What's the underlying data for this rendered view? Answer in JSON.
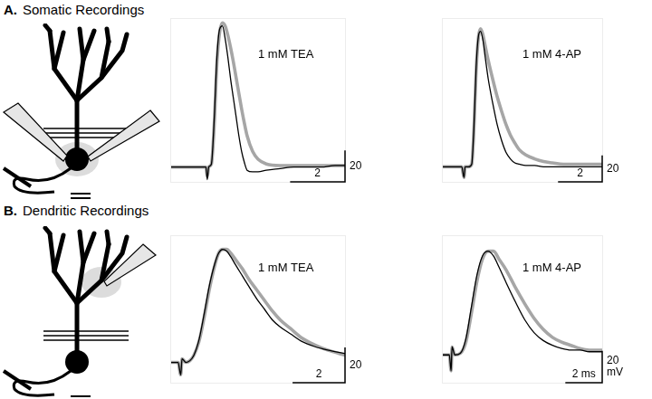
{
  "figure": {
    "panels": [
      {
        "label": "A.",
        "title": "Somatic Recordings"
      },
      {
        "label": "B.",
        "title": "Dendritic Recordings"
      }
    ]
  },
  "chart_data": [
    {
      "type": "line",
      "annotation": "1 mM TEA",
      "x": [
        0,
        0.5,
        1.0,
        1.3,
        1.35,
        1.4,
        1.5,
        1.6,
        1.7,
        1.8,
        1.9,
        2.0,
        2.1,
        2.2,
        2.3,
        2.4,
        2.5,
        2.6,
        2.7,
        2.8,
        3.0,
        3.2,
        3.5,
        4.0,
        4.5,
        5.0,
        5.5,
        6.0,
        6.4
      ],
      "series": [
        {
          "color": "#000000",
          "values": [
            0,
            0,
            0,
            0,
            -8,
            0,
            2,
            30,
            70,
            88,
            90,
            82,
            70,
            56,
            44,
            32,
            20,
            10,
            3,
            -2,
            -3,
            -3,
            -2,
            -1,
            0,
            0,
            0,
            1,
            1
          ]
        },
        {
          "color": "#a6a6a6",
          "values": [
            0,
            0,
            0,
            0,
            -6,
            0,
            2,
            26,
            66,
            86,
            92,
            90,
            84,
            76,
            67,
            57,
            47,
            37,
            28,
            20,
            10,
            5,
            2,
            1,
            1,
            1,
            1,
            1,
            1
          ]
        }
      ],
      "xlim": [
        0,
        6.4
      ],
      "ylim": [
        -10,
        95
      ],
      "grid": false,
      "tick_labels": false,
      "scale_bar": {
        "x": 2,
        "y": 20
      }
    },
    {
      "type": "line",
      "annotation": "1 mM 4-AP",
      "x": [
        0,
        0.5,
        0.9,
        1.0,
        1.05,
        1.2,
        1.35,
        1.45,
        1.55,
        1.65,
        1.75,
        1.85,
        1.95,
        2.1,
        2.3,
        2.5,
        2.7,
        2.9,
        3.1,
        3.3,
        3.5,
        3.8,
        4.2,
        4.6,
        5.0,
        5.5,
        6.0,
        6.5,
        7.0,
        7.3
      ],
      "series": [
        {
          "color": "#000000",
          "values": [
            0,
            0,
            0,
            -8,
            0,
            0,
            2,
            30,
            75,
            98,
            102,
            96,
            84,
            66,
            48,
            32,
            20,
            11,
            6,
            3,
            2,
            1,
            1,
            0,
            0,
            0,
            0,
            0,
            0,
            0
          ]
        },
        {
          "color": "#a6a6a6",
          "values": [
            0,
            0,
            0,
            -8,
            0,
            0,
            2,
            28,
            72,
            97,
            104,
            100,
            92,
            80,
            66,
            53,
            42,
            32,
            24,
            18,
            13,
            9,
            6,
            4,
            3,
            2,
            2,
            2,
            2,
            2
          ]
        }
      ],
      "xlim": [
        0,
        7.3
      ],
      "ylim": [
        -12,
        112
      ],
      "grid": false,
      "tick_labels": false,
      "scale_bar": {
        "x": 2,
        "y": 20
      }
    },
    {
      "type": "line",
      "annotation": "1 mM TEA",
      "x": [
        0,
        0.3,
        0.4,
        0.45,
        0.6,
        0.75,
        0.9,
        1.1,
        1.3,
        1.5,
        1.7,
        1.85,
        2.0,
        2.15,
        2.3,
        2.5,
        2.75,
        3.0,
        3.3,
        3.6,
        3.9,
        4.2,
        4.6,
        5.0,
        5.5,
        6.0,
        6.7
      ],
      "series": [
        {
          "color": "#000000",
          "values": [
            0,
            0,
            -7,
            2,
            0,
            1,
            4,
            13,
            28,
            44,
            56,
            62,
            64,
            63,
            60,
            55,
            49,
            43,
            36,
            30,
            24,
            20,
            16,
            12,
            9,
            7,
            5
          ]
        },
        {
          "color": "#a6a6a6",
          "values": [
            0,
            0,
            -7,
            2,
            0,
            1,
            4,
            12,
            26,
            42,
            55,
            62,
            64,
            64,
            62,
            58,
            53,
            47,
            41,
            35,
            29,
            24,
            19,
            14,
            10,
            7,
            4
          ]
        }
      ],
      "xlim": [
        0,
        6.7
      ],
      "ylim": [
        -12,
        72
      ],
      "grid": false,
      "tick_labels": false,
      "scale_bar": {
        "x": 2,
        "y": 20
      }
    },
    {
      "type": "line",
      "annotation": "1 mM 4-AP",
      "x": [
        0,
        0.4,
        0.5,
        0.55,
        0.7,
        1.0,
        1.3,
        1.6,
        1.9,
        2.2,
        2.5,
        2.8,
        3.1,
        3.5,
        4.0,
        4.5,
        5.0,
        5.5,
        6.0,
        6.5,
        7.0,
        7.5,
        8.0,
        8.75
      ],
      "series": [
        {
          "color": "#000000",
          "values": [
            0,
            0,
            -10,
            5,
            0,
            1,
            10,
            30,
            50,
            62,
            65,
            62,
            55,
            45,
            33,
            22,
            14,
            9,
            6,
            4,
            3,
            3,
            2,
            2
          ]
        },
        {
          "color": "#a6a6a6",
          "values": [
            0,
            0,
            -10,
            5,
            0,
            1,
            8,
            26,
            46,
            60,
            65,
            65,
            60,
            53,
            42,
            32,
            23,
            16,
            11,
            8,
            6,
            4,
            3,
            3
          ]
        }
      ],
      "xlim": [
        0,
        8.75
      ],
      "ylim": [
        -18,
        75
      ],
      "grid": false,
      "tick_labels": false,
      "scale_bar": {
        "x": {
          "value": 2,
          "label": "2 ms"
        },
        "y": {
          "value": 20,
          "label": "20 mV"
        }
      }
    }
  ]
}
